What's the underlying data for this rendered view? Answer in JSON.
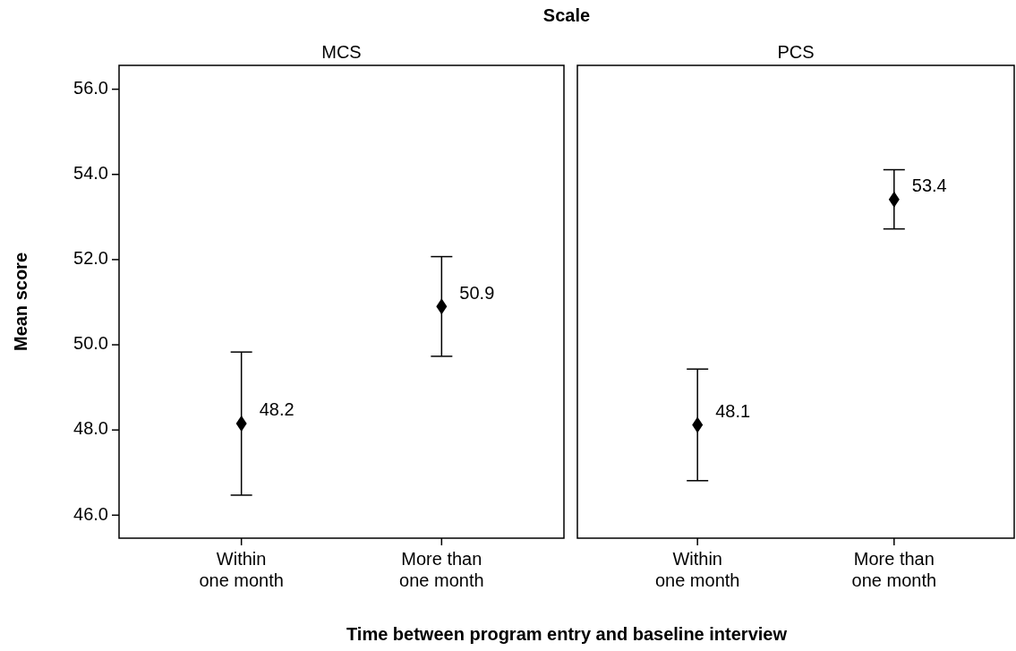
{
  "chart_data": [
    {
      "type": "scatter",
      "title": "MCS",
      "ylabel": "Mean score",
      "xlabel": "Time between program entry and baseline interview",
      "annotations": [
        "Scale"
      ],
      "categories": [
        "Within one month",
        "More than one month"
      ],
      "marker": "diamond",
      "grid": false,
      "ylim": [
        45.46,
        56.56
      ],
      "yticks": [
        {
          "value": 46,
          "label": "46.0"
        },
        {
          "value": 48,
          "label": "48.0"
        },
        {
          "value": 50,
          "label": "50.0"
        },
        {
          "value": 52,
          "label": "52.0"
        },
        {
          "value": 54,
          "label": "54.0"
        },
        {
          "value": 56,
          "label": "56.0"
        }
      ],
      "series": [
        {
          "color": "#000000",
          "values": [
            48.15,
            50.9
          ],
          "errors": [
            [
              46.47,
              49.83
            ],
            [
              49.73,
              52.07
            ]
          ],
          "value_labels": [
            "48.2",
            "50.9"
          ]
        }
      ]
    },
    {
      "type": "scatter",
      "title": "PCS",
      "categories": [
        "Within one month",
        "More than one month"
      ],
      "marker": "diamond",
      "grid": false,
      "tick_labels": "x",
      "ylim": [
        45.46,
        56.56
      ],
      "series": [
        {
          "color": "#000000",
          "values": [
            48.12,
            53.41
          ],
          "errors": [
            [
              46.81,
              49.43
            ],
            [
              52.72,
              54.11
            ]
          ],
          "value_labels": [
            "48.1",
            "53.4"
          ]
        }
      ]
    }
  ]
}
